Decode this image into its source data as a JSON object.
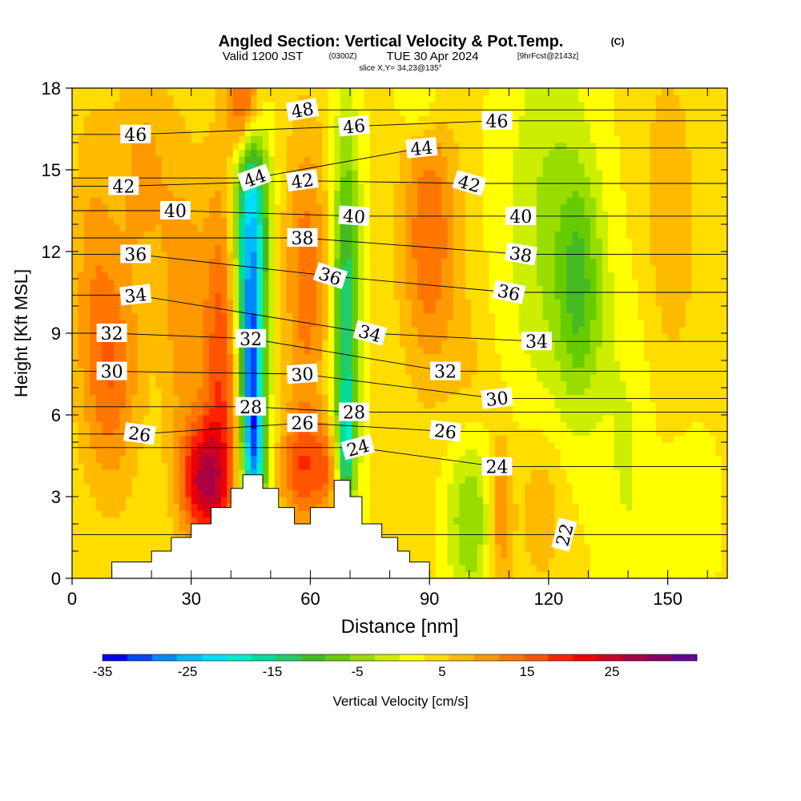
{
  "chart_data": {
    "type": "heatmap",
    "title": "Angled Section: Vertical Velocity & Pot.Temp.",
    "title_suffix": "(C)",
    "subtitle_valid": "Valid 1200 JST",
    "subtitle_utc": "(0300Z)",
    "subtitle_date": "TUE 30 Apr 2024",
    "subtitle_fcst": "[9hrFcst@2143z]",
    "slice_label": "slice X,Y= 34,23@135°",
    "xlabel": "Distance [nm]",
    "ylabel": "Height [Kft MSL]",
    "xlim": [
      0,
      165
    ],
    "ylim": [
      0,
      18
    ],
    "x_ticks": [
      "0",
      "30",
      "60",
      "90",
      "120",
      "150"
    ],
    "x_tick_values": [
      0,
      30,
      60,
      90,
      120,
      150
    ],
    "y_ticks": [
      "0",
      "3",
      "6",
      "9",
      "12",
      "15",
      "18"
    ],
    "y_tick_values": [
      0,
      3,
      6,
      9,
      12,
      15,
      18
    ],
    "colorbar": {
      "label": "Vertical Velocity [cm/s]",
      "range": [
        -35,
        35
      ],
      "tick_labels": [
        "-35",
        "-25",
        "-15",
        "-5",
        "5",
        "15",
        "25"
      ],
      "tick_values": [
        -35,
        -25,
        -15,
        -5,
        5,
        15,
        25
      ],
      "colors": [
        "#0000ff",
        "#0044ff",
        "#0088ff",
        "#00bbff",
        "#00ddff",
        "#00eecc",
        "#00dd99",
        "#22cc66",
        "#44bb22",
        "#66cc00",
        "#99dd00",
        "#ccee00",
        "#ffff00",
        "#ffdd00",
        "#ffbb00",
        "#ff9900",
        "#ff7700",
        "#ff5500",
        "#ff2200",
        "#ee0000",
        "#cc0022",
        "#aa0044",
        "#880066",
        "#660099"
      ]
    },
    "terrain": [
      [
        0,
        0
      ],
      [
        10,
        0
      ],
      [
        10,
        0.6
      ],
      [
        20,
        0.6
      ],
      [
        20,
        1.0
      ],
      [
        25,
        1.0
      ],
      [
        25,
        1.5
      ],
      [
        30,
        1.5
      ],
      [
        30,
        2.0
      ],
      [
        35,
        2.0
      ],
      [
        35,
        2.6
      ],
      [
        40,
        2.6
      ],
      [
        40,
        3.3
      ],
      [
        43,
        3.3
      ],
      [
        43,
        3.8
      ],
      [
        48,
        3.8
      ],
      [
        48,
        3.3
      ],
      [
        52,
        3.3
      ],
      [
        52,
        2.6
      ],
      [
        56,
        2.6
      ],
      [
        56,
        2.0
      ],
      [
        60,
        2.0
      ],
      [
        60,
        2.6
      ],
      [
        66,
        2.6
      ],
      [
        66,
        3.6
      ],
      [
        70,
        3.6
      ],
      [
        70,
        3.0
      ],
      [
        73,
        3.0
      ],
      [
        73,
        2.0
      ],
      [
        78,
        2.0
      ],
      [
        78,
        1.5
      ],
      [
        82,
        1.5
      ],
      [
        82,
        1.0
      ],
      [
        85,
        1.0
      ],
      [
        85,
        0.6
      ],
      [
        90,
        0.6
      ],
      [
        90,
        0
      ],
      [
        165,
        0
      ]
    ],
    "isentropes": [
      {
        "theta": 22,
        "label_x": 124,
        "label_y": 1.6,
        "rotate": -75
      },
      {
        "theta": 24,
        "label_x": 72,
        "label_y": 4.8,
        "rotate": -15
      },
      {
        "theta": 24,
        "label_x": 107,
        "label_y": 4.1,
        "rotate": 0
      },
      {
        "theta": 26,
        "label_x": 17,
        "label_y": 5.3,
        "rotate": 8
      },
      {
        "theta": 26,
        "label_x": 58,
        "label_y": 5.7,
        "rotate": 0
      },
      {
        "theta": 26,
        "label_x": 94,
        "label_y": 5.4,
        "rotate": 6
      },
      {
        "theta": 28,
        "label_x": 45,
        "label_y": 6.3,
        "rotate": 0
      },
      {
        "theta": 28,
        "label_x": 71,
        "label_y": 6.1,
        "rotate": 0
      },
      {
        "theta": 30,
        "label_x": 10,
        "label_y": 7.6,
        "rotate": 0
      },
      {
        "theta": 30,
        "label_x": 58,
        "label_y": 7.5,
        "rotate": -4
      },
      {
        "theta": 30,
        "label_x": 107,
        "label_y": 6.6,
        "rotate": -6
      },
      {
        "theta": 32,
        "label_x": 10,
        "label_y": 9.0,
        "rotate": 0
      },
      {
        "theta": 32,
        "label_x": 45,
        "label_y": 8.8,
        "rotate": 0
      },
      {
        "theta": 32,
        "label_x": 94,
        "label_y": 7.6,
        "rotate": 0
      },
      {
        "theta": 34,
        "label_x": 16,
        "label_y": 10.4,
        "rotate": -6
      },
      {
        "theta": 34,
        "label_x": 75,
        "label_y": 9.0,
        "rotate": 15
      },
      {
        "theta": 34,
        "label_x": 117,
        "label_y": 8.7,
        "rotate": 0
      },
      {
        "theta": 36,
        "label_x": 16,
        "label_y": 11.9,
        "rotate": 0
      },
      {
        "theta": 36,
        "label_x": 65,
        "label_y": 11.1,
        "rotate": 18
      },
      {
        "theta": 36,
        "label_x": 110,
        "label_y": 10.5,
        "rotate": 12
      },
      {
        "theta": 38,
        "label_x": 58,
        "label_y": 12.5,
        "rotate": 0
      },
      {
        "theta": 38,
        "label_x": 113,
        "label_y": 11.9,
        "rotate": 10
      },
      {
        "theta": 40,
        "label_x": 26,
        "label_y": 13.5,
        "rotate": 0
      },
      {
        "theta": 40,
        "label_x": 71,
        "label_y": 13.3,
        "rotate": 4
      },
      {
        "theta": 40,
        "label_x": 113,
        "label_y": 13.3,
        "rotate": 0
      },
      {
        "theta": 42,
        "label_x": 13,
        "label_y": 14.4,
        "rotate": 0
      },
      {
        "theta": 42,
        "label_x": 58,
        "label_y": 14.6,
        "rotate": -8
      },
      {
        "theta": 42,
        "label_x": 100,
        "label_y": 14.5,
        "rotate": 16
      },
      {
        "theta": 44,
        "label_x": 46,
        "label_y": 14.7,
        "rotate": -20
      },
      {
        "theta": 44,
        "label_x": 88,
        "label_y": 15.8,
        "rotate": -6
      },
      {
        "theta": 46,
        "label_x": 16,
        "label_y": 16.3,
        "rotate": 0
      },
      {
        "theta": 46,
        "label_x": 71,
        "label_y": 16.6,
        "rotate": -6
      },
      {
        "theta": 46,
        "label_x": 107,
        "label_y": 16.8,
        "rotate": 0
      },
      {
        "theta": 48,
        "label_x": 58,
        "label_y": 17.2,
        "rotate": -10
      }
    ],
    "velocity_features": [
      {
        "x": 45,
        "y": 12.5,
        "sx": 3,
        "sy": 5,
        "w": -28
      },
      {
        "x": 46,
        "y": 4.5,
        "sx": 2,
        "sy": 2.0,
        "w": -22
      },
      {
        "x": 45,
        "y": 8,
        "sx": 1.5,
        "sy": 2.5,
        "w": -14
      },
      {
        "x": 69,
        "y": 9.5,
        "sx": 2.5,
        "sy": 5,
        "w": -18
      },
      {
        "x": 69,
        "y": 5.0,
        "sx": 1.2,
        "sy": 1.5,
        "w": -12
      },
      {
        "x": 38,
        "y": 7.5,
        "sx": 3.5,
        "sy": 5,
        "w": 14
      },
      {
        "x": 44,
        "y": 17.5,
        "sx": 3,
        "sy": 1.5,
        "w": 25
      },
      {
        "x": 33,
        "y": 3.6,
        "sx": 4,
        "sy": 1.5,
        "w": 20
      },
      {
        "x": 59,
        "y": 11,
        "sx": 4,
        "sy": 4,
        "w": 10
      },
      {
        "x": 58,
        "y": 4.0,
        "sx": 4,
        "sy": 1.5,
        "w": 12
      },
      {
        "x": 64,
        "y": 4.0,
        "sx": 2,
        "sy": 1.2,
        "w": 8
      },
      {
        "x": 90,
        "y": 12.5,
        "sx": 5,
        "sy": 3.5,
        "w": 11
      },
      {
        "x": 10,
        "y": 7.5,
        "sx": 5,
        "sy": 3,
        "w": 10
      },
      {
        "x": 18,
        "y": 15,
        "sx": 5,
        "sy": 3,
        "w": 6
      },
      {
        "x": 5,
        "y": 12,
        "sx": 4,
        "sy": 4,
        "w": 5
      },
      {
        "x": 28,
        "y": 10,
        "sx": 4,
        "sy": 4,
        "w": 7
      },
      {
        "x": 100,
        "y": 2.5,
        "sx": 4,
        "sy": 2.5,
        "w": -10
      },
      {
        "x": 120,
        "y": 13,
        "sx": 8,
        "sy": 5,
        "w": -7
      },
      {
        "x": 128,
        "y": 10.5,
        "sx": 4,
        "sy": 3,
        "w": -10
      },
      {
        "x": 140,
        "y": 5,
        "sx": 5,
        "sy": 5,
        "w": -4
      },
      {
        "x": 108,
        "y": 2.5,
        "sx": 2,
        "sy": 2.0,
        "w": 9
      },
      {
        "x": 118,
        "y": 2.5,
        "sx": 4,
        "sy": 2.0,
        "w": 5
      },
      {
        "x": 88,
        "y": 17.5,
        "sx": 4,
        "sy": 1.0,
        "w": -6
      },
      {
        "x": 100,
        "y": 6.5,
        "sx": 4,
        "sy": 2.5,
        "w": 4
      },
      {
        "x": 150,
        "y": 13,
        "sx": 6,
        "sy": 5,
        "w": 4
      },
      {
        "x": 155,
        "y": 2.5,
        "sx": 5,
        "sy": 2.5,
        "w": -3
      }
    ]
  }
}
